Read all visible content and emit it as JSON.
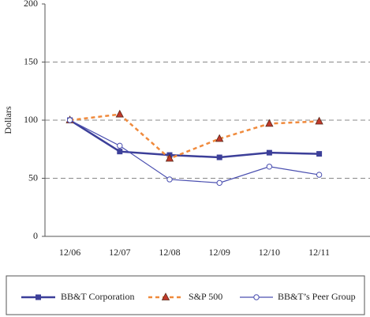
{
  "chart_data": {
    "type": "line",
    "y_label": "Dollars",
    "categories": [
      "12/06",
      "12/07",
      "12/08",
      "12/09",
      "12/10",
      "12/11"
    ],
    "series": [
      {
        "name": "BB&T Corporation",
        "color": "#3c3f99",
        "marker": "square",
        "dashed": false,
        "width": 2.5,
        "values": [
          100,
          73,
          70,
          68,
          72,
          71
        ]
      },
      {
        "name": "S&P 500",
        "color": "#f08a3c",
        "marker": "triangle",
        "dashed": true,
        "width": 2.5,
        "values": [
          100,
          105,
          67,
          84,
          97,
          99
        ]
      },
      {
        "name": "BB&T’s Peer Group",
        "color": "#4a4fb0",
        "marker": "circle",
        "dashed": false,
        "width": 1.2,
        "values": [
          100,
          78,
          49,
          46,
          60,
          53
        ]
      }
    ],
    "ylim": [
      0,
      200
    ],
    "yticks": [
      0,
      50,
      100,
      150,
      200
    ],
    "grid": true,
    "legend": "bottom"
  }
}
